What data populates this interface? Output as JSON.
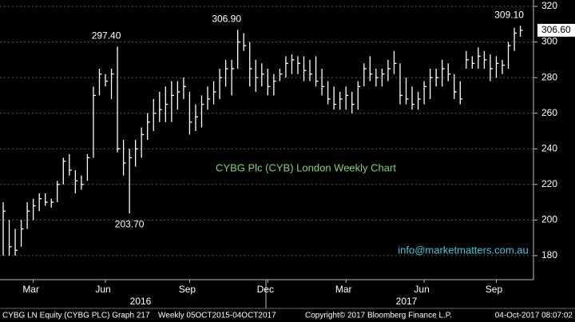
{
  "chart_data": {
    "type": "ohlc",
    "annotation": "CYBG Plc (CYB) London Weekly Chart",
    "watermark": "info@marketmatters.com.au",
    "footer": [
      "CYBG LN Equity (CYBG PLC) Graph 217",
      "Weekly 05OCT2015-04OCT2017",
      "Copyright© 2017 Bloomberg Finance L.P.",
      "04-Oct-2017 08:07:02"
    ],
    "years": [
      "2016",
      "2017"
    ],
    "categories": [
      null,
      null,
      null,
      null,
      null,
      "Mar",
      null,
      null,
      null,
      null,
      null,
      null,
      null,
      null,
      null,
      null,
      null,
      "Jun",
      null,
      null,
      null,
      null,
      null,
      null,
      null,
      null,
      null,
      null,
      null,
      null,
      null,
      "Sep",
      null,
      null,
      null,
      null,
      null,
      null,
      null,
      null,
      null,
      null,
      null,
      null,
      "Dec",
      null,
      null,
      null,
      null,
      null,
      null,
      null,
      null,
      null,
      null,
      null,
      null,
      "Mar",
      null,
      null,
      null,
      null,
      null,
      null,
      null,
      null,
      null,
      null,
      null,
      null,
      "Jun",
      null,
      null,
      null,
      null,
      null,
      null,
      null,
      null,
      null,
      null,
      null,
      "Sep",
      null,
      null,
      null,
      null
    ],
    "high": [
      210,
      200,
      195,
      200,
      210,
      212,
      215,
      215,
      212,
      222,
      235,
      237,
      228,
      225,
      237,
      275,
      285,
      282,
      285,
      297.4,
      245,
      240,
      245,
      252,
      260,
      268,
      272,
      275,
      278,
      278,
      280,
      272,
      265,
      270,
      275,
      278,
      285,
      290,
      290,
      306.9,
      305,
      300,
      290,
      288,
      285,
      282,
      285,
      292,
      293,
      292,
      292,
      290,
      292,
      285,
      278,
      275,
      272,
      275,
      272,
      278,
      288,
      292,
      285,
      285,
      290,
      295,
      288,
      280,
      275,
      272,
      278,
      285,
      285,
      290,
      288,
      282,
      278,
      295,
      292,
      297,
      295,
      293,
      292,
      290,
      300,
      308,
      309.1
    ],
    "low": [
      180,
      180,
      180,
      185,
      195,
      200,
      205,
      208,
      207,
      210,
      220,
      225,
      215,
      217,
      222,
      235,
      270,
      275,
      268,
      238,
      225,
      203.7,
      230,
      235,
      245,
      250,
      255,
      255,
      255,
      262,
      268,
      248,
      250,
      252,
      262,
      265,
      268,
      275,
      270,
      285,
      295,
      275,
      272,
      275,
      270,
      270,
      278,
      280,
      282,
      282,
      278,
      278,
      275,
      270,
      265,
      262,
      262,
      262,
      260,
      262,
      275,
      278,
      275,
      275,
      278,
      282,
      265,
      265,
      262,
      262,
      265,
      268,
      275,
      275,
      278,
      268,
      265,
      285,
      285,
      285,
      285,
      278,
      280,
      282,
      285,
      295,
      303
    ],
    "close": [
      205,
      185,
      183,
      195,
      205,
      208,
      212,
      210,
      210,
      220,
      233,
      228,
      222,
      220,
      235,
      270,
      282,
      278,
      282,
      240,
      232,
      235,
      240,
      248,
      255,
      260,
      262,
      265,
      270,
      272,
      275,
      255,
      258,
      265,
      268,
      272,
      280,
      285,
      285,
      300,
      298,
      285,
      280,
      282,
      275,
      278,
      282,
      288,
      290,
      288,
      284,
      282,
      278,
      275,
      268,
      265,
      268,
      270,
      265,
      275,
      285,
      282,
      280,
      282,
      285,
      288,
      270,
      268,
      265,
      268,
      275,
      280,
      280,
      285,
      282,
      272,
      268,
      290,
      288,
      292,
      290,
      285,
      288,
      287,
      298,
      305,
      306.6
    ],
    "high_labels": [
      null,
      null,
      null,
      null,
      null,
      null,
      null,
      null,
      null,
      null,
      null,
      null,
      null,
      null,
      null,
      null,
      null,
      null,
      null,
      "297.40",
      null,
      null,
      null,
      null,
      null,
      null,
      null,
      null,
      null,
      null,
      null,
      null,
      null,
      null,
      null,
      null,
      null,
      null,
      null,
      "306.90",
      null,
      null,
      null,
      null,
      null,
      null,
      null,
      null,
      null,
      null,
      null,
      null,
      null,
      null,
      null,
      null,
      null,
      null,
      null,
      null,
      null,
      null,
      null,
      null,
      null,
      null,
      null,
      null,
      null,
      null,
      null,
      null,
      null,
      null,
      null,
      null,
      null,
      null,
      null,
      null,
      null,
      null,
      null,
      null,
      null,
      null,
      "309.10"
    ],
    "low_labels": [
      null,
      null,
      null,
      null,
      null,
      null,
      null,
      null,
      null,
      null,
      null,
      null,
      null,
      null,
      null,
      null,
      null,
      null,
      null,
      null,
      null,
      "203.70",
      null,
      null,
      null,
      null,
      null,
      null,
      null,
      null,
      null,
      null,
      null,
      null,
      null,
      null,
      null,
      null,
      null,
      null,
      null,
      null,
      null,
      null,
      null,
      null,
      null,
      null,
      null,
      null,
      null,
      null,
      null,
      null,
      null,
      null,
      null,
      null,
      null,
      null,
      null,
      null,
      null,
      null,
      null,
      null,
      null,
      null,
      null,
      null,
      null,
      null,
      null,
      null,
      null,
      null,
      null,
      null,
      null,
      null,
      null,
      null,
      null,
      null,
      null,
      null,
      null
    ],
    "last_price": {
      "value": 306.6,
      "label": "306.60"
    },
    "color": "#ffffff",
    "ylim": [
      166.5,
      323.6
    ],
    "yticks": [
      180,
      200,
      220,
      240,
      260,
      280,
      300,
      320
    ],
    "grid": true
  }
}
